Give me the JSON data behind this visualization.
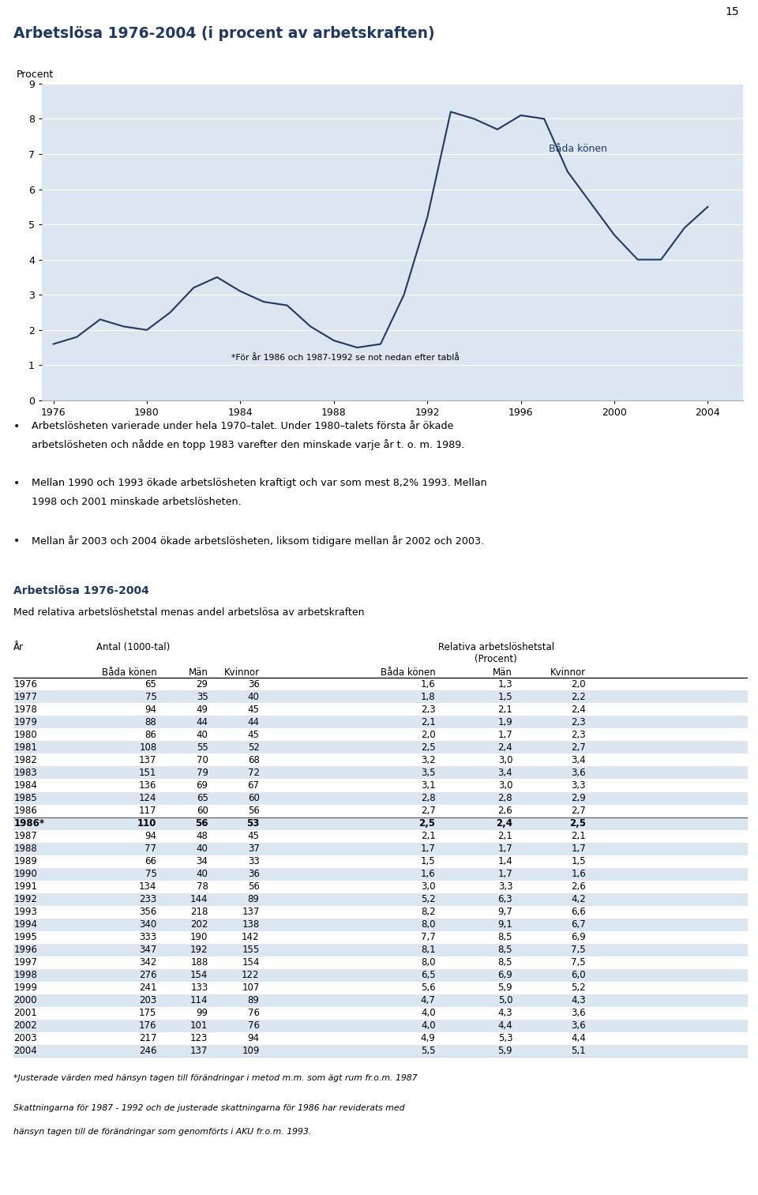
{
  "title": "Arbetslösa 1976-2004 (i procent av arbetskraften)",
  "title_color": "#1f3864",
  "page_number": "15",
  "ylabel": "Procent",
  "chart_bg": "#dce6f1",
  "line_color": "#1f3864",
  "annotation_text": "*För år 1986 och 1987-1992 se not nedan efter tablå",
  "label_bada_konen": "Båda könen",
  "years": [
    1976,
    1977,
    1978,
    1979,
    1980,
    1981,
    1982,
    1983,
    1984,
    1985,
    1986,
    1987,
    1988,
    1989,
    1990,
    1991,
    1992,
    1993,
    1994,
    1995,
    1996,
    1997,
    1998,
    1999,
    2000,
    2001,
    2002,
    2003,
    2004
  ],
  "values": [
    1.6,
    1.8,
    2.3,
    2.1,
    2.0,
    2.5,
    3.2,
    3.5,
    3.1,
    2.8,
    2.7,
    2.1,
    1.7,
    1.5,
    1.6,
    3.0,
    5.2,
    8.2,
    8.0,
    7.7,
    8.1,
    8.0,
    6.5,
    5.6,
    4.7,
    4.0,
    4.0,
    4.9,
    5.5
  ],
  "xticks": [
    1976,
    1980,
    1984,
    1988,
    1992,
    1996,
    2000,
    2004
  ],
  "yticks": [
    0,
    1,
    2,
    3,
    4,
    5,
    6,
    7,
    8,
    9
  ],
  "ylim": [
    0,
    9
  ],
  "xlim": [
    1975.5,
    2005.5
  ],
  "bullet1_line1": "Arbetslösheten varierade under hela 1970–talet. Under 1980–talets första år ökade",
  "bullet1_line2": "arbetslösheten och nådde en topp 1983 varefter den minskade varje år t. o. m. 1989.",
  "bullet2_line1": "Mellan 1990 och 1993 ökade arbetslösheten kraftigt och var som mest 8,2% 1993. Mellan",
  "bullet2_line2": "1998 och 2001 minskade arbetslösheten.",
  "bullet3": "Mellan år 2003 och 2004 ökade arbetslösheten, liksom tidigare mellan år 2002 och 2003.",
  "table_title": "Arbetslösa 1976-2004",
  "table_subtitle": "Med relativa arbetslöshetstal menas andel arbetslösa av arbetskraften",
  "table_data": [
    [
      "1976",
      "65",
      "29",
      "36",
      "1,6",
      "1,3",
      "2,0",
      false
    ],
    [
      "1977",
      "75",
      "35",
      "40",
      "1,8",
      "1,5",
      "2,2",
      true
    ],
    [
      "1978",
      "94",
      "49",
      "45",
      "2,3",
      "2,1",
      "2,4",
      false
    ],
    [
      "1979",
      "88",
      "44",
      "44",
      "2,1",
      "1,9",
      "2,3",
      true
    ],
    [
      "1980",
      "86",
      "40",
      "45",
      "2,0",
      "1,7",
      "2,3",
      false
    ],
    [
      "1981",
      "108",
      "55",
      "52",
      "2,5",
      "2,4",
      "2,7",
      true
    ],
    [
      "1982",
      "137",
      "70",
      "68",
      "3,2",
      "3,0",
      "3,4",
      false
    ],
    [
      "1983",
      "151",
      "79",
      "72",
      "3,5",
      "3,4",
      "3,6",
      true
    ],
    [
      "1984",
      "136",
      "69",
      "67",
      "3,1",
      "3,0",
      "3,3",
      false
    ],
    [
      "1985",
      "124",
      "65",
      "60",
      "2,8",
      "2,8",
      "2,9",
      true
    ],
    [
      "1986",
      "117",
      "60",
      "56",
      "2,7",
      "2,6",
      "2,7",
      false
    ],
    [
      "1986*",
      "110",
      "56",
      "53",
      "2,5",
      "2,4",
      "2,5",
      true
    ],
    [
      "1987",
      "94",
      "48",
      "45",
      "2,1",
      "2,1",
      "2,1",
      false
    ],
    [
      "1988",
      "77",
      "40",
      "37",
      "1,7",
      "1,7",
      "1,7",
      true
    ],
    [
      "1989",
      "66",
      "34",
      "33",
      "1,5",
      "1,4",
      "1,5",
      false
    ],
    [
      "1990",
      "75",
      "40",
      "36",
      "1,6",
      "1,7",
      "1,6",
      true
    ],
    [
      "1991",
      "134",
      "78",
      "56",
      "3,0",
      "3,3",
      "2,6",
      false
    ],
    [
      "1992",
      "233",
      "144",
      "89",
      "5,2",
      "6,3",
      "4,2",
      true
    ],
    [
      "1993",
      "356",
      "218",
      "137",
      "8,2",
      "9,7",
      "6,6",
      false
    ],
    [
      "1994",
      "340",
      "202",
      "138",
      "8,0",
      "9,1",
      "6,7",
      true
    ],
    [
      "1995",
      "333",
      "190",
      "142",
      "7,7",
      "8,5",
      "6,9",
      false
    ],
    [
      "1996",
      "347",
      "192",
      "155",
      "8,1",
      "8,5",
      "7,5",
      true
    ],
    [
      "1997",
      "342",
      "188",
      "154",
      "8,0",
      "8,5",
      "7,5",
      false
    ],
    [
      "1998",
      "276",
      "154",
      "122",
      "6,5",
      "6,9",
      "6,0",
      true
    ],
    [
      "1999",
      "241",
      "133",
      "107",
      "5,6",
      "5,9",
      "5,2",
      false
    ],
    [
      "2000",
      "203",
      "114",
      "89",
      "4,7",
      "5,0",
      "4,3",
      true
    ],
    [
      "2001",
      "175",
      "99",
      "76",
      "4,0",
      "4,3",
      "3,6",
      false
    ],
    [
      "2002",
      "176",
      "101",
      "76",
      "4,0",
      "4,4",
      "3,6",
      true
    ],
    [
      "2003",
      "217",
      "123",
      "94",
      "4,9",
      "5,3",
      "4,4",
      false
    ],
    [
      "2004",
      "246",
      "137",
      "109",
      "5,5",
      "5,9",
      "5,1",
      true
    ]
  ],
  "footnote1": "*Justerade värden med hänsyn tagen till förändringar i metod m.m. som ägt rum fr.o.m. 1987",
  "footnote2_line1": "Skattningarna för 1987 - 1992 och de justerade skattningarna för 1986 har reviderats med",
  "footnote2_line2": "hänsyn tagen till de förändringar som genomförts i AKU fr.o.m. 1993.",
  "row_color_even": "#dce6f1",
  "row_color_odd": "#ffffff",
  "table_title_color": "#1f3864"
}
